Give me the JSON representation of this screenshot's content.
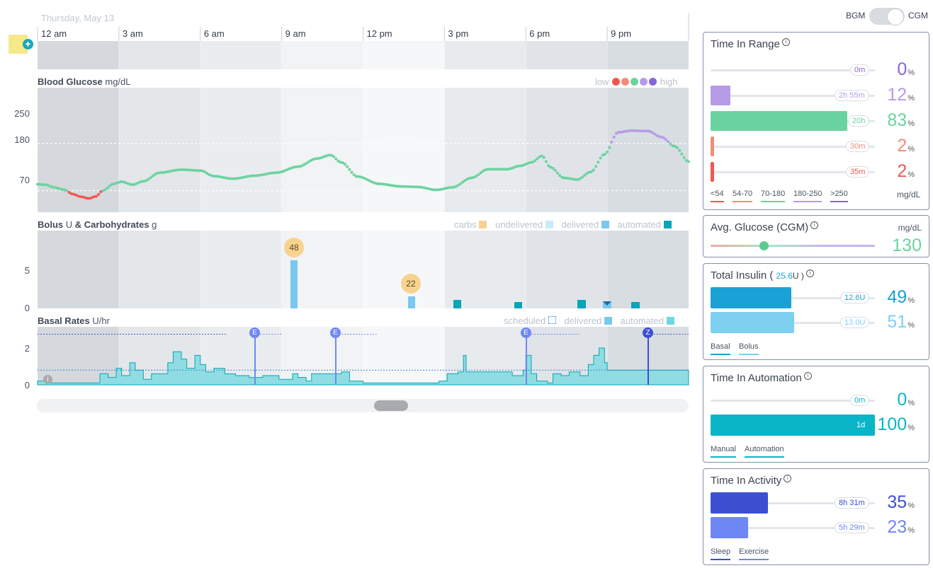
{
  "date": "Thursday, May 13",
  "hours": [
    "12 am",
    "3 am",
    "6 am",
    "9 am",
    "12 pm",
    "3 pm",
    "6 pm",
    "9 pm"
  ],
  "bg_section": {
    "title": "Blood Glucose",
    "unit": "mg/dL",
    "ticks": [
      "250",
      "180",
      "70"
    ],
    "legend_low": "low",
    "legend_high": "high",
    "colors": [
      "#f0584f",
      "#f28c7a",
      "#6bd3a0",
      "#b79be6",
      "#8a64d8"
    ]
  },
  "bolus_section": {
    "title_a": "Bolus",
    "unit_a": "U",
    "amp": "&",
    "title_b": "Carbohydrates",
    "unit_b": "g",
    "ticks": [
      "5",
      "0"
    ],
    "legend": {
      "carbs": "carbs",
      "undelivered": "undelivered",
      "delivered": "delivered",
      "automated": "automated"
    },
    "carbs": [
      "48",
      "22"
    ]
  },
  "basal_section": {
    "title": "Basal Rates",
    "unit": "U/hr",
    "ticks": [
      "2",
      "0"
    ],
    "legend": {
      "scheduled": "scheduled",
      "delivered": "delivered",
      "automated": "automated"
    },
    "markers": [
      "E",
      "E",
      "E",
      "Z"
    ],
    "info_glyph": "i"
  },
  "toggle": {
    "left": "BGM",
    "right": "CGM",
    "state": "CGM"
  },
  "tir": {
    "title": "Time In Range",
    "rows": [
      {
        "pill": "0m",
        "value": "0",
        "fraction": 0.0,
        "color": "#8a64d8"
      },
      {
        "pill": "2h 55m",
        "value": "12",
        "fraction": 0.12,
        "color": "#b79be6"
      },
      {
        "pill": "20h",
        "value": "83",
        "fraction": 0.83,
        "color": "#6bd3a0"
      },
      {
        "pill": "30m",
        "value": "2",
        "fraction": 0.02,
        "color": "#f28c7a"
      },
      {
        "pill": "35m",
        "value": "2",
        "fraction": 0.02,
        "color": "#f0584f"
      }
    ],
    "cats": [
      "<54",
      "54-70",
      "70-180",
      "180-250",
      ">250"
    ],
    "unit": "mg/dL",
    "pct": "%"
  },
  "avg": {
    "title": "Avg. Glucose (CGM)",
    "unit": "mg/dL",
    "value": "130"
  },
  "insulin": {
    "title": "Total Insulin (",
    "total": "25.6",
    "total_unit": "U )",
    "rows": [
      {
        "pill": "12.6U",
        "value": "49",
        "fraction": 0.49,
        "color": "#1aa2d6"
      },
      {
        "pill": "13.0U",
        "value": "51",
        "fraction": 0.51,
        "color": "#7dd0f0"
      }
    ],
    "cats": [
      "Basal",
      "Bolus"
    ]
  },
  "automation": {
    "title": "Time In Automation",
    "rows": [
      {
        "pill": "0m",
        "value": "0",
        "fraction": 0.0,
        "color": "#0ab5c8"
      },
      {
        "pill": "1d",
        "value": "100",
        "fraction": 1.0,
        "color": "#0ab5c8"
      }
    ],
    "cats": [
      "Manual",
      "Automation"
    ]
  },
  "activity": {
    "title": "Time In Activity",
    "rows": [
      {
        "pill": "8h 31m",
        "value": "35",
        "fraction": 0.35,
        "color": "#3d4fd1"
      },
      {
        "pill": "5h 29m",
        "value": "23",
        "fraction": 0.23,
        "color": "#6f86f5"
      }
    ],
    "cats": [
      "Sleep",
      "Exercise"
    ]
  }
}
